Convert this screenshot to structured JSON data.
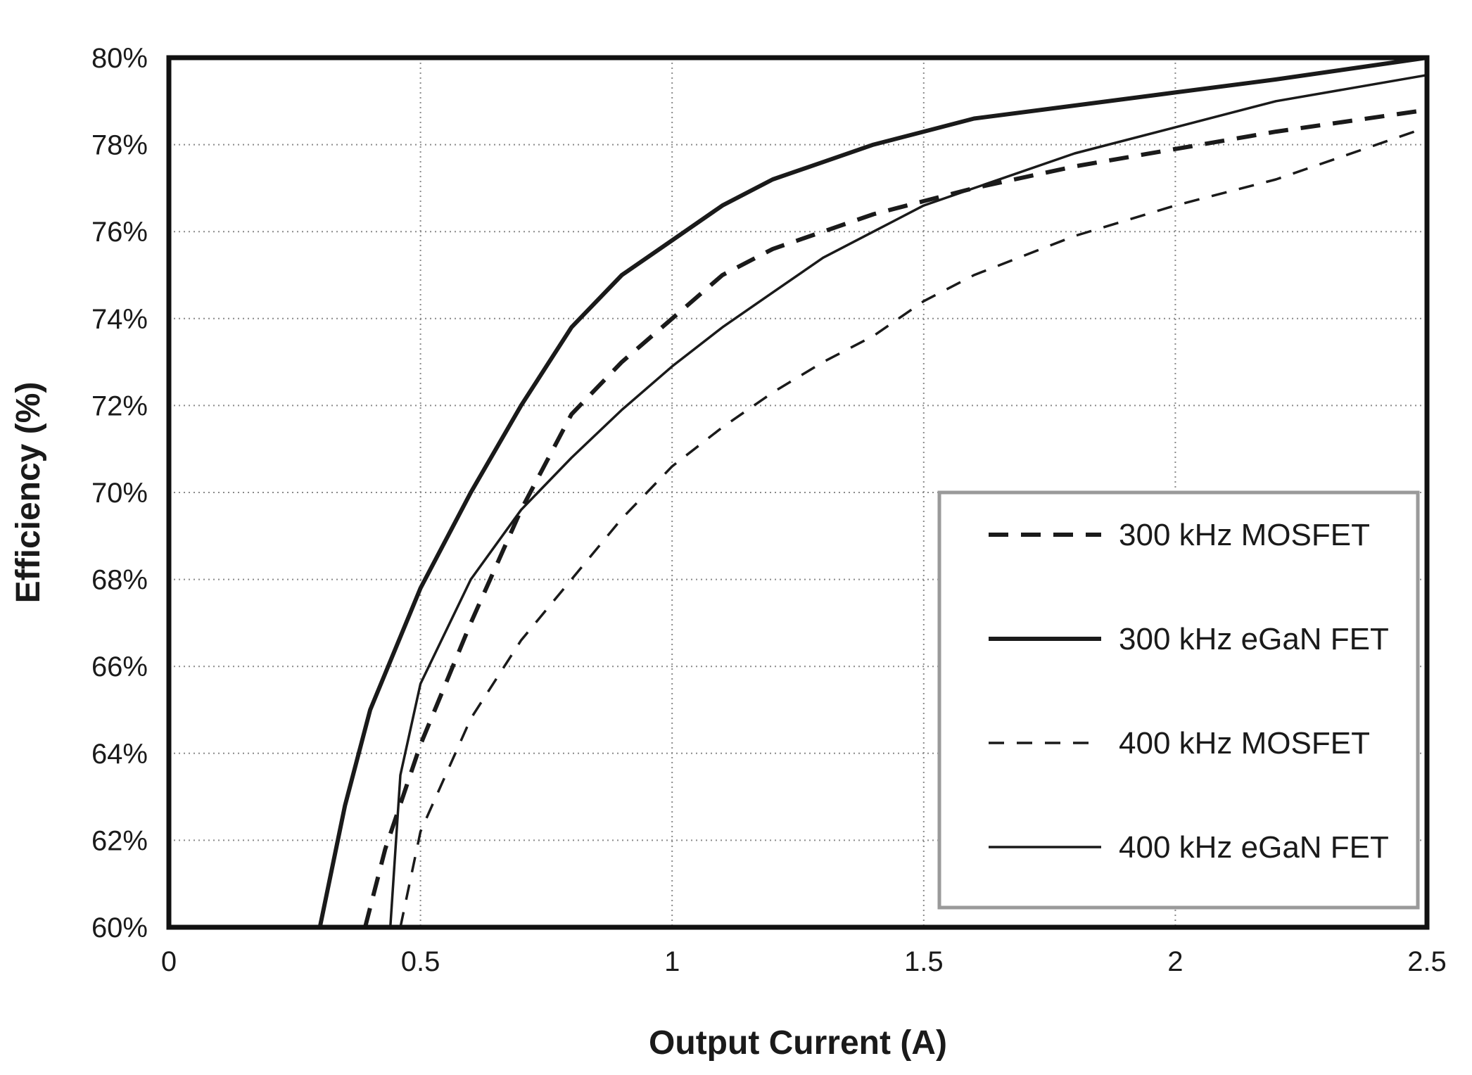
{
  "chart_data": {
    "type": "line",
    "title": "",
    "xlabel": "Output Current (A)",
    "ylabel": "Efficiency (%)",
    "xlim": [
      0,
      2.5
    ],
    "ylim": [
      60,
      80
    ],
    "grid": true,
    "legend_position": "bottom-right",
    "x_ticks": [
      {
        "value": 0,
        "label": "0"
      },
      {
        "value": 0.5,
        "label": "0.5"
      },
      {
        "value": 1,
        "label": "1"
      },
      {
        "value": 1.5,
        "label": "1.5"
      },
      {
        "value": 2,
        "label": "2"
      },
      {
        "value": 2.5,
        "label": "2.5"
      }
    ],
    "y_ticks": [
      {
        "value": 60,
        "label": "60%"
      },
      {
        "value": 62,
        "label": "62%"
      },
      {
        "value": 64,
        "label": "64%"
      },
      {
        "value": 66,
        "label": "66%"
      },
      {
        "value": 68,
        "label": "68%"
      },
      {
        "value": 70,
        "label": "70%"
      },
      {
        "value": 72,
        "label": "72%"
      },
      {
        "value": 74,
        "label": "74%"
      },
      {
        "value": 76,
        "label": "76%"
      },
      {
        "value": 78,
        "label": "78%"
      },
      {
        "value": 80,
        "label": "80%"
      }
    ],
    "series": [
      {
        "name": "300 kHz MOSFET",
        "style": "dashed-thick",
        "color": "#1a1a1a",
        "points": [
          [
            0.39,
            60
          ],
          [
            0.43,
            61.8
          ],
          [
            0.5,
            64.2
          ],
          [
            0.6,
            67
          ],
          [
            0.7,
            69.6
          ],
          [
            0.8,
            71.8
          ],
          [
            0.9,
            73.0
          ],
          [
            1.0,
            74.0
          ],
          [
            1.1,
            75.0
          ],
          [
            1.2,
            75.6
          ],
          [
            1.3,
            76.0
          ],
          [
            1.4,
            76.4
          ],
          [
            1.5,
            76.7
          ],
          [
            1.6,
            77.0
          ],
          [
            1.8,
            77.5
          ],
          [
            2.0,
            77.9
          ],
          [
            2.2,
            78.3
          ],
          [
            2.5,
            78.8
          ]
        ]
      },
      {
        "name": "300 kHz eGaN FET",
        "style": "solid-thick",
        "color": "#1a1a1a",
        "points": [
          [
            0.3,
            60
          ],
          [
            0.35,
            62.8
          ],
          [
            0.4,
            65
          ],
          [
            0.5,
            67.8
          ],
          [
            0.6,
            70.0
          ],
          [
            0.7,
            72.0
          ],
          [
            0.8,
            73.8
          ],
          [
            0.9,
            75.0
          ],
          [
            1.0,
            75.8
          ],
          [
            1.1,
            76.6
          ],
          [
            1.2,
            77.2
          ],
          [
            1.3,
            77.6
          ],
          [
            1.4,
            78.0
          ],
          [
            1.5,
            78.3
          ],
          [
            1.6,
            78.6
          ],
          [
            1.8,
            78.9
          ],
          [
            2.0,
            79.2
          ],
          [
            2.2,
            79.5
          ],
          [
            2.5,
            80.0
          ]
        ]
      },
      {
        "name": "400 kHz MOSFET",
        "style": "dashed-thin",
        "color": "#1a1a1a",
        "points": [
          [
            0.46,
            60
          ],
          [
            0.5,
            62.2
          ],
          [
            0.6,
            64.8
          ],
          [
            0.7,
            66.6
          ],
          [
            0.8,
            68.0
          ],
          [
            0.9,
            69.4
          ],
          [
            1.0,
            70.6
          ],
          [
            1.1,
            71.5
          ],
          [
            1.2,
            72.3
          ],
          [
            1.3,
            73.0
          ],
          [
            1.4,
            73.6
          ],
          [
            1.5,
            74.4
          ],
          [
            1.6,
            75.0
          ],
          [
            1.8,
            75.9
          ],
          [
            2.0,
            76.6
          ],
          [
            2.2,
            77.2
          ],
          [
            2.5,
            78.4
          ]
        ]
      },
      {
        "name": "400 kHz eGaN FET",
        "style": "solid-thin",
        "color": "#1a1a1a",
        "points": [
          [
            0.44,
            60
          ],
          [
            0.46,
            63.5
          ],
          [
            0.5,
            65.6
          ],
          [
            0.6,
            68.0
          ],
          [
            0.7,
            69.6
          ],
          [
            0.8,
            70.8
          ],
          [
            0.9,
            71.9
          ],
          [
            1.0,
            72.9
          ],
          [
            1.1,
            73.8
          ],
          [
            1.2,
            74.6
          ],
          [
            1.3,
            75.4
          ],
          [
            1.4,
            76.0
          ],
          [
            1.5,
            76.6
          ],
          [
            1.6,
            77.0
          ],
          [
            1.8,
            77.8
          ],
          [
            2.0,
            78.4
          ],
          [
            2.2,
            79.0
          ],
          [
            2.5,
            79.6
          ]
        ]
      }
    ]
  }
}
